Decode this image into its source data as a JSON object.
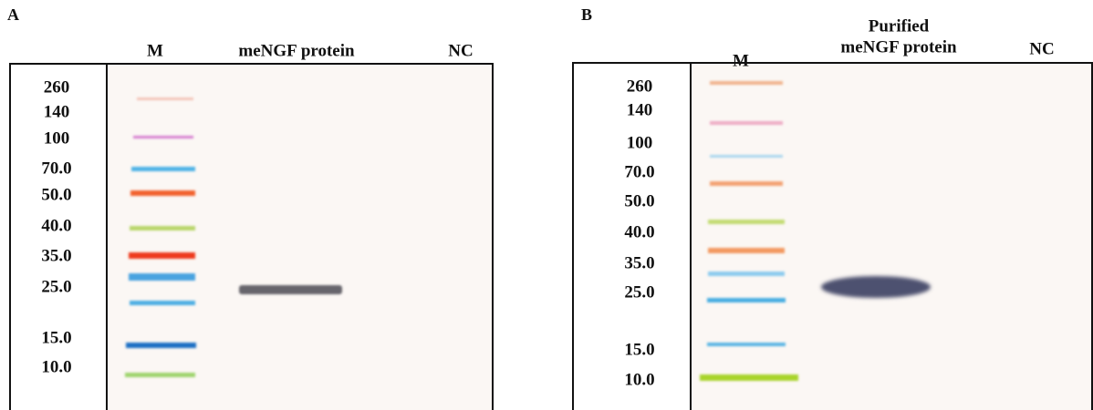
{
  "panels": [
    {
      "label": "A",
      "lanes": [
        "M",
        "meNGF protein",
        "NC"
      ],
      "markers": [
        "260",
        "140",
        "100",
        "70.0",
        "50.0",
        "40.0",
        "35.0",
        "25.0",
        "15.0",
        "10.0"
      ]
    },
    {
      "label": "B",
      "lanes": [
        "M",
        "Purified",
        "meNGF protein",
        "NC"
      ],
      "markers": [
        "260",
        "140",
        "100",
        "70.0",
        "50.0",
        "40.0",
        "35.0",
        "25.0",
        "15.0",
        "10.0"
      ]
    }
  ]
}
